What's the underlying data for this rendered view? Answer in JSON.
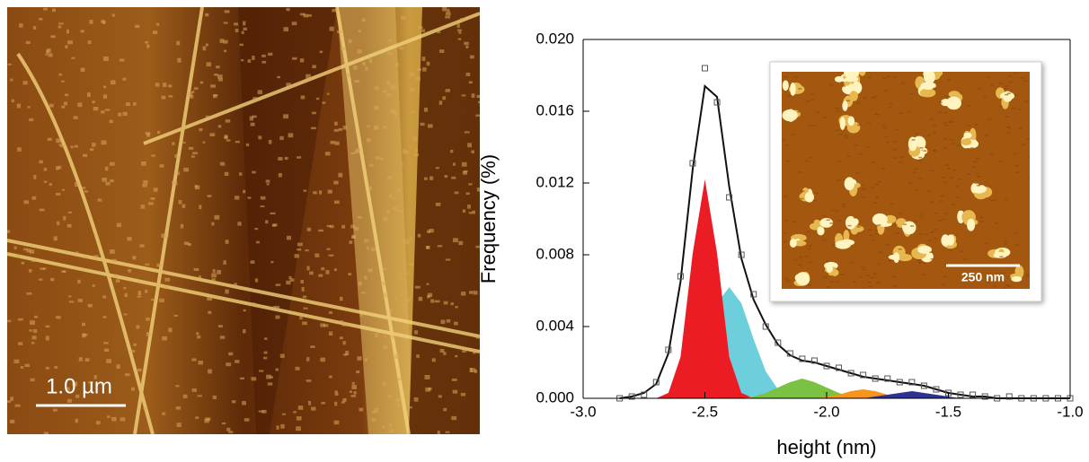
{
  "afm_image": {
    "scale_bar": "1.0 µm"
  },
  "chart_data": {
    "type": "area",
    "x_label": "height (nm)",
    "y_label": "Frequency (%)",
    "x": [
      -2.85,
      -2.8,
      -2.75,
      -2.7,
      -2.65,
      -2.6,
      -2.55,
      -2.5,
      -2.45,
      -2.4,
      -2.35,
      -2.3,
      -2.25,
      -2.2,
      -2.15,
      -2.1,
      -2.05,
      -2.0,
      -1.95,
      -1.9,
      -1.85,
      -1.8,
      -1.75,
      -1.7,
      -1.65,
      -1.6,
      -1.55,
      -1.5,
      -1.45,
      -1.4,
      -1.35,
      -1.3,
      -1.25,
      -1.2,
      -1.15,
      -1.1,
      -1.05,
      -1.0
    ],
    "series": [
      {
        "style": "area",
        "color": "#6ccfdb",
        "values": [
          0,
          0,
          0,
          0,
          0.0001,
          0.0005,
          0.0015,
          0.0033,
          0.0053,
          0.0062,
          0.0053,
          0.0033,
          0.0015,
          0.0005,
          0.0001,
          0,
          0,
          0,
          0,
          0,
          0,
          0,
          0,
          0,
          0,
          0,
          0,
          0,
          0,
          0,
          0,
          0,
          0,
          0,
          0,
          0,
          0,
          0
        ]
      },
      {
        "style": "area",
        "color": "#ec1c24",
        "values": [
          0,
          0,
          0,
          0,
          0.0003,
          0.0023,
          0.0081,
          0.0122,
          0.0081,
          0.0023,
          0.0003,
          0,
          0,
          0,
          0,
          0,
          0,
          0,
          0,
          0,
          0,
          0,
          0,
          0,
          0,
          0,
          0,
          0,
          0,
          0,
          0,
          0,
          0,
          0,
          0,
          0,
          0,
          0
        ]
      },
      {
        "style": "area",
        "color": "#7cc242",
        "values": [
          0,
          0,
          0,
          0,
          0,
          0,
          0,
          0,
          0,
          0,
          0,
          0.0001,
          0.0003,
          0.0006,
          0.0009,
          0.0011,
          0.0009,
          0.0006,
          0.0003,
          0.0001,
          0,
          0,
          0,
          0,
          0,
          0,
          0,
          0,
          0,
          0,
          0,
          0,
          0,
          0,
          0,
          0,
          0,
          0
        ]
      },
      {
        "style": "area",
        "color": "#f7941d",
        "values": [
          0,
          0,
          0,
          0,
          0,
          0,
          0,
          0,
          0,
          0,
          0,
          0,
          0,
          0,
          0,
          0,
          0,
          0.0001,
          0.0002,
          0.0004,
          0.0005,
          0.0004,
          0.0002,
          0.0001,
          0,
          0,
          0,
          0,
          0,
          0,
          0,
          0,
          0,
          0,
          0,
          0,
          0,
          0
        ]
      },
      {
        "style": "area",
        "color": "#2e3192",
        "values": [
          0,
          0,
          0,
          0,
          0,
          0,
          0,
          0,
          0,
          0,
          0,
          0,
          0,
          0,
          0,
          0,
          0,
          0,
          0,
          0,
          0,
          0.0001,
          0.0002,
          0.0003,
          0.0004,
          0.0003,
          0.0002,
          0.0001,
          0,
          0,
          0,
          0,
          0,
          0,
          0,
          0,
          0,
          0
        ]
      },
      {
        "style": "line",
        "color": "#111111",
        "values": [
          0,
          0.0001,
          0.0003,
          0.0008,
          0.0025,
          0.0065,
          0.0128,
          0.0174,
          0.0168,
          0.0118,
          0.0078,
          0.0055,
          0.0041,
          0.003,
          0.0024,
          0.0021,
          0.002,
          0.0018,
          0.0016,
          0.0014,
          0.0012,
          0.0011,
          0.001,
          0.0009,
          0.0008,
          0.0007,
          0.0005,
          0.0003,
          0.0002,
          0.0001,
          0.0001,
          0,
          0,
          0,
          0,
          0,
          0,
          0
        ]
      },
      {
        "style": "markers",
        "color": "#555555",
        "values": [
          0,
          0.0001,
          0.0002,
          0.0009,
          0.0027,
          0.0068,
          0.0131,
          0.0184,
          0.0165,
          0.0112,
          0.008,
          0.0058,
          0.004,
          0.0031,
          0.0025,
          0.0022,
          0.0021,
          0.0018,
          0.0017,
          0.0014,
          0.0013,
          0.0011,
          0.0011,
          0.0009,
          0.0009,
          0.0007,
          0.0005,
          0.0003,
          0.0002,
          0.0002,
          0.0001,
          0,
          0.0001,
          0,
          0,
          0,
          0,
          0
        ]
      }
    ],
    "xlim": [
      -3.0,
      -1.0
    ],
    "xticks": [
      {
        "value": -3.0,
        "label": "-3.0"
      },
      {
        "value": -2.5,
        "label": "-2.5"
      },
      {
        "value": -2.0,
        "label": "-2.0"
      },
      {
        "value": -1.5,
        "label": "-1.5"
      },
      {
        "value": -1.0,
        "label": "-1.0"
      }
    ],
    "ylim": [
      0,
      0.02
    ],
    "yticks": [
      {
        "value": 0,
        "label": "0.000"
      },
      {
        "value": 0.004,
        "label": "0.004"
      },
      {
        "value": 0.008,
        "label": "0.008"
      },
      {
        "value": 0.012,
        "label": "0.012"
      },
      {
        "value": 0.016,
        "label": "0.016"
      },
      {
        "value": 0.02,
        "label": "0.020"
      }
    ],
    "inset_scale_bar": "250 nm"
  }
}
